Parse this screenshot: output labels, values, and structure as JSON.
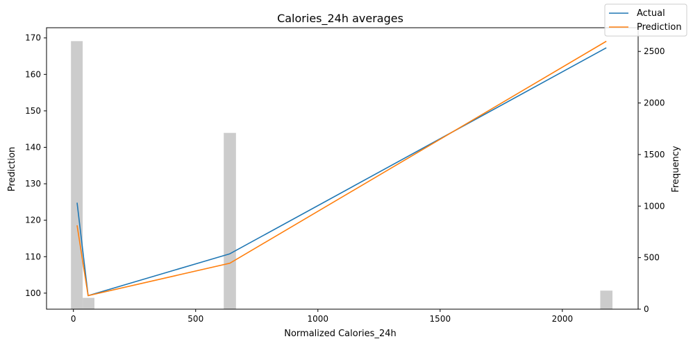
{
  "chart_data": {
    "type": "line",
    "title": "Calories_24h averages",
    "xlabel": "Normalized Calories_24h",
    "ylabel": "Prediction",
    "y2label": "Frequency",
    "xlim": [
      -110,
      2310
    ],
    "ylim": [
      95.6,
      172.8
    ],
    "y2lim": [
      0,
      2730
    ],
    "xticks": [
      0,
      500,
      1000,
      1500,
      2000
    ],
    "yticks": [
      100,
      110,
      120,
      130,
      140,
      150,
      160,
      170
    ],
    "y2ticks": [
      0,
      500,
      1000,
      1500,
      2000,
      2500
    ],
    "legend_position": "upper-right",
    "series": [
      {
        "name": "Actual",
        "color": "#1f77b4",
        "x": [
          15,
          60,
          640,
          2180
        ],
        "y": [
          124.8,
          99.3,
          110.8,
          167.3
        ]
      },
      {
        "name": "Prediction",
        "color": "#ff7f0e",
        "x": [
          15,
          60,
          640,
          2180
        ],
        "y": [
          118.6,
          99.3,
          108.2,
          169.1
        ]
      }
    ],
    "histogram": {
      "name": "Frequency",
      "color": "#cccccc",
      "bars": [
        {
          "x0": -10,
          "x1": 38,
          "value": 2600
        },
        {
          "x0": 38,
          "x1": 86,
          "value": 110
        },
        {
          "x0": 615,
          "x1": 665,
          "value": 1710
        },
        {
          "x0": 2155,
          "x1": 2205,
          "value": 180
        }
      ]
    }
  }
}
